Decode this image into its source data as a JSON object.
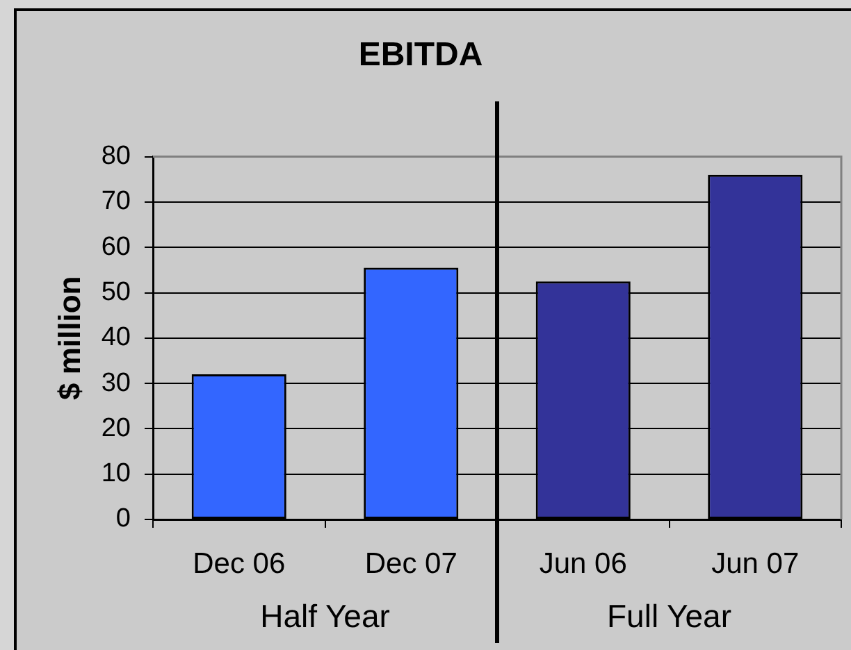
{
  "chart_data": {
    "type": "bar",
    "title": "EBITDA",
    "ylabel": "$ million",
    "categories": [
      "Dec 06",
      "Dec 07",
      "Jun 06",
      "Jun 07"
    ],
    "series": [
      {
        "name": "Half Year",
        "color": "#3366ff",
        "values": [
          32,
          55.5,
          null,
          null
        ]
      },
      {
        "name": "Full Year",
        "color": "#333399",
        "values": [
          null,
          null,
          52.5,
          76
        ]
      }
    ],
    "ylim": [
      0,
      80
    ],
    "yticks": [
      0,
      10,
      20,
      30,
      40,
      50,
      60,
      70,
      80
    ],
    "grid": "y"
  }
}
